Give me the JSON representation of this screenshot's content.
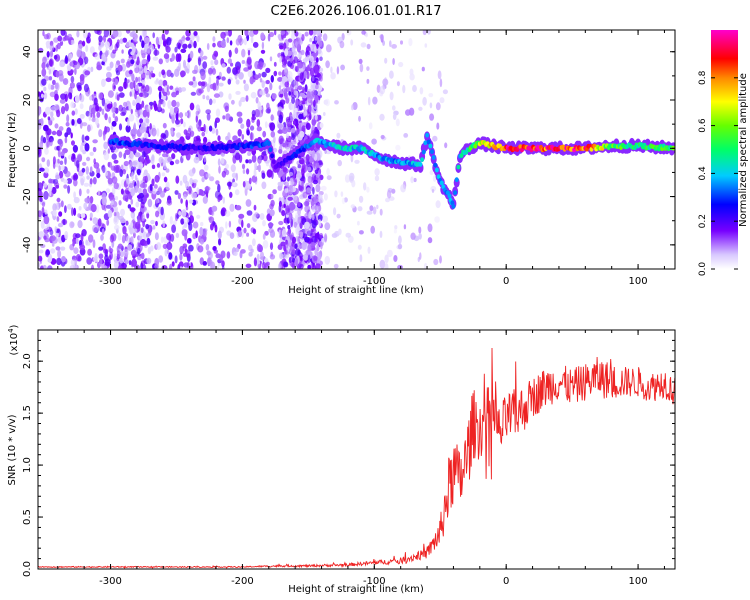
{
  "page_title": "C2E6.2026.106.01.01.R17",
  "chart_data": [
    {
      "type": "heatmap",
      "title": "C2E6.2026.106.01.01.R17",
      "xlabel": "Height of straight line (km)",
      "ylabel": "Frequency (Hz)",
      "xlim": [
        -355,
        128
      ],
      "ylim": [
        -50,
        49
      ],
      "xticks": [
        -300,
        -200,
        -100,
        0,
        100
      ],
      "xtick_labels": [
        "-300",
        "-200",
        "-100",
        "0",
        "100"
      ],
      "yticks": [
        -40,
        -20,
        0,
        20,
        40
      ],
      "ytick_labels": [
        "-40",
        "-20",
        "0",
        "20",
        "40"
      ],
      "colorbar": {
        "label": "Normalized spectral amplitude",
        "range": [
          0,
          1
        ],
        "ticks": [
          0,
          0.2,
          0.4,
          0.6,
          0.8
        ],
        "tick_labels": [
          "0.0",
          "0.2",
          "0.4",
          "0.6",
          "0.8"
        ],
        "colormap": [
          "#ffffff",
          "#6600ff",
          "#0000ff",
          "#00ffff",
          "#00ff00",
          "#ffff00",
          "#ff8800",
          "#ff0000",
          "#ff00ff"
        ]
      },
      "noise_regions": [
        {
          "x": [
            -355,
            -270
          ],
          "density": "high"
        },
        {
          "x": [
            -285,
            -175
          ],
          "density": "high"
        },
        {
          "x": [
            -172,
            -140
          ],
          "density": "high"
        },
        {
          "x": [
            -140,
            -45
          ],
          "density": "low"
        }
      ],
      "ridge_track": [
        {
          "x": -300,
          "y": 3,
          "amplitude": 0.35
        },
        {
          "x": -270,
          "y": 1,
          "amplitude": 0.3
        },
        {
          "x": -230,
          "y": 0,
          "amplitude": 0.25
        },
        {
          "x": -200,
          "y": 1,
          "amplitude": 0.3
        },
        {
          "x": -180,
          "y": 2,
          "amplitude": 0.35
        },
        {
          "x": -175,
          "y": -8,
          "amplitude": 0.2
        },
        {
          "x": -145,
          "y": 3,
          "amplitude": 0.4
        },
        {
          "x": -125,
          "y": 0,
          "amplitude": 0.45
        },
        {
          "x": -110,
          "y": 0,
          "amplitude": 0.45
        },
        {
          "x": -95,
          "y": -4,
          "amplitude": 0.4
        },
        {
          "x": -80,
          "y": -6,
          "amplitude": 0.4
        },
        {
          "x": -65,
          "y": -7,
          "amplitude": 0.45
        },
        {
          "x": -60,
          "y": 5,
          "amplitude": 0.4
        },
        {
          "x": -50,
          "y": -14,
          "amplitude": 0.4
        },
        {
          "x": -43,
          "y": -20,
          "amplitude": 0.4
        },
        {
          "x": -40,
          "y": -24,
          "amplitude": 0.4
        },
        {
          "x": -35,
          "y": -3,
          "amplitude": 0.45
        },
        {
          "x": -28,
          "y": 0,
          "amplitude": 0.55
        },
        {
          "x": -20,
          "y": 2,
          "amplitude": 0.7
        },
        {
          "x": 0,
          "y": 0,
          "amplitude": 0.95
        },
        {
          "x": 30,
          "y": 0,
          "amplitude": 0.95
        },
        {
          "x": 60,
          "y": 0,
          "amplitude": 0.95
        },
        {
          "x": 80,
          "y": 1,
          "amplitude": 0.6
        },
        {
          "x": 100,
          "y": 1,
          "amplitude": 0.55
        },
        {
          "x": 128,
          "y": 0,
          "amplitude": 0.6
        }
      ]
    },
    {
      "type": "line",
      "xlabel": "Height of straight line (km)",
      "ylabel": "SNR (10 * v/v)",
      "y_multiplier_label": "(x10",
      "y_multiplier_exponent": "4",
      "y_multiplier_suffix": ")",
      "xlim": [
        -355,
        128
      ],
      "ylim": [
        0,
        2.3
      ],
      "xticks": [
        -300,
        -200,
        -100,
        0,
        100
      ],
      "xtick_labels": [
        "-300",
        "-200",
        "-100",
        "0",
        "100"
      ],
      "yticks": [
        0,
        0.5,
        1.0,
        1.5,
        2.0
      ],
      "ytick_labels": [
        "0.0",
        "0.5",
        "1.0",
        "1.5",
        "2.0"
      ],
      "series": [
        {
          "name": "SNR",
          "color": "#ee2222",
          "x": [
            -355,
            -300,
            -250,
            -200,
            -170,
            -150,
            -120,
            -100,
            -80,
            -60,
            -50,
            -45,
            -40,
            -35,
            -30,
            -25,
            -20,
            -15,
            -10,
            -5,
            0,
            10,
            20,
            30,
            40,
            50,
            60,
            70,
            80,
            90,
            100,
            110,
            120,
            128
          ],
          "values": [
            0.02,
            0.02,
            0.02,
            0.02,
            0.03,
            0.03,
            0.04,
            0.06,
            0.08,
            0.15,
            0.35,
            0.7,
            0.95,
            0.85,
            1.05,
            1.4,
            1.35,
            1.45,
            1.5,
            1.3,
            1.45,
            1.5,
            1.65,
            1.75,
            1.8,
            1.75,
            1.8,
            1.85,
            1.8,
            1.8,
            1.8,
            1.75,
            1.8,
            1.7
          ],
          "spread": [
            0.005,
            0.005,
            0.005,
            0.005,
            0.01,
            0.01,
            0.015,
            0.02,
            0.03,
            0.05,
            0.15,
            0.3,
            0.35,
            0.3,
            0.35,
            0.35,
            0.3,
            0.3,
            0.3,
            0.25,
            0.25,
            0.25,
            0.2,
            0.2,
            0.18,
            0.18,
            0.18,
            0.2,
            0.18,
            0.15,
            0.15,
            0.15,
            0.15,
            0.15
          ]
        }
      ]
    }
  ]
}
